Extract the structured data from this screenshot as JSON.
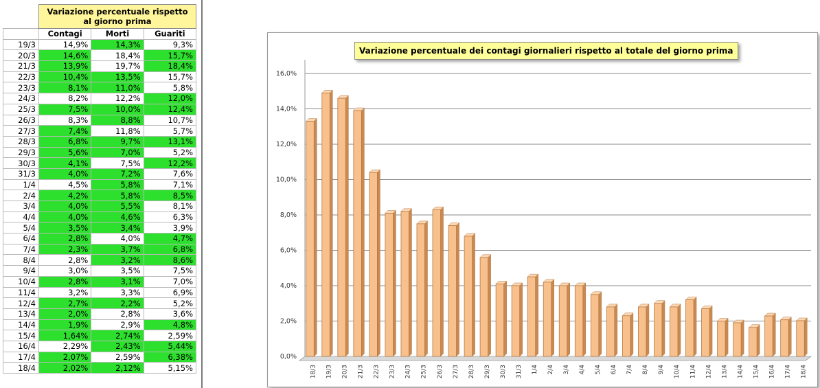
{
  "table": {
    "title": "Variazione percentuale rispetto al giorno prima",
    "headers": [
      "Contagi",
      "Morti",
      "Guariti"
    ],
    "rows": [
      {
        "date": "19/3",
        "contagi": "14,9%",
        "morti": "14,3%",
        "guariti": "9,3%",
        "hl": [
          false,
          true,
          false
        ]
      },
      {
        "date": "20/3",
        "contagi": "14,6%",
        "morti": "18,4%",
        "guariti": "15,7%",
        "hl": [
          true,
          false,
          true
        ]
      },
      {
        "date": "21/3",
        "contagi": "13,9%",
        "morti": "19,7%",
        "guariti": "18,4%",
        "hl": [
          true,
          false,
          true
        ]
      },
      {
        "date": "22/3",
        "contagi": "10,4%",
        "morti": "13,5%",
        "guariti": "15,7%",
        "hl": [
          true,
          true,
          false
        ]
      },
      {
        "date": "23/3",
        "contagi": "8,1%",
        "morti": "11,0%",
        "guariti": "5,8%",
        "hl": [
          true,
          true,
          false
        ]
      },
      {
        "date": "24/3",
        "contagi": "8,2%",
        "morti": "12,2%",
        "guariti": "12,0%",
        "hl": [
          false,
          false,
          true
        ]
      },
      {
        "date": "25/3",
        "contagi": "7,5%",
        "morti": "10,0%",
        "guariti": "12,4%",
        "hl": [
          true,
          true,
          true
        ]
      },
      {
        "date": "26/3",
        "contagi": "8,3%",
        "morti": "8,8%",
        "guariti": "10,7%",
        "hl": [
          false,
          true,
          false
        ]
      },
      {
        "date": "27/3",
        "contagi": "7,4%",
        "morti": "11,8%",
        "guariti": "5,7%",
        "hl": [
          true,
          false,
          false
        ]
      },
      {
        "date": "28/3",
        "contagi": "6,8%",
        "morti": "9,7%",
        "guariti": "13,1%",
        "hl": [
          true,
          true,
          true
        ]
      },
      {
        "date": "29/3",
        "contagi": "5,6%",
        "morti": "7,0%",
        "guariti": "5,2%",
        "hl": [
          true,
          true,
          false
        ]
      },
      {
        "date": "30/3",
        "contagi": "4,1%",
        "morti": "7,5%",
        "guariti": "12,2%",
        "hl": [
          true,
          false,
          true
        ]
      },
      {
        "date": "31/3",
        "contagi": "4,0%",
        "morti": "7,2%",
        "guariti": "7,6%",
        "hl": [
          true,
          true,
          false
        ]
      },
      {
        "date": "1/4",
        "contagi": "4,5%",
        "morti": "5,8%",
        "guariti": "7,1%",
        "hl": [
          false,
          true,
          false
        ]
      },
      {
        "date": "2/4",
        "contagi": "4,2%",
        "morti": "5,8%",
        "guariti": "8,5%",
        "hl": [
          true,
          true,
          true
        ]
      },
      {
        "date": "3/4",
        "contagi": "4,0%",
        "morti": "5,5%",
        "guariti": "8,1%",
        "hl": [
          true,
          true,
          false
        ]
      },
      {
        "date": "4/4",
        "contagi": "4,0%",
        "morti": "4,6%",
        "guariti": "6,3%",
        "hl": [
          true,
          true,
          false
        ]
      },
      {
        "date": "5/4",
        "contagi": "3,5%",
        "morti": "3,4%",
        "guariti": "3,9%",
        "hl": [
          true,
          true,
          false
        ]
      },
      {
        "date": "6/4",
        "contagi": "2,8%",
        "morti": "4,0%",
        "guariti": "4,7%",
        "hl": [
          true,
          false,
          true
        ]
      },
      {
        "date": "7/4",
        "contagi": "2,3%",
        "morti": "3,7%",
        "guariti": "6,8%",
        "hl": [
          true,
          true,
          true
        ]
      },
      {
        "date": "8/4",
        "contagi": "2,8%",
        "morti": "3,2%",
        "guariti": "8,6%",
        "hl": [
          false,
          true,
          true
        ]
      },
      {
        "date": "9/4",
        "contagi": "3,0%",
        "morti": "3,5%",
        "guariti": "7,5%",
        "hl": [
          false,
          false,
          false
        ]
      },
      {
        "date": "10/4",
        "contagi": "2,8%",
        "morti": "3,1%",
        "guariti": "7,0%",
        "hl": [
          true,
          true,
          false
        ]
      },
      {
        "date": "11/4",
        "contagi": "3,2%",
        "morti": "3,3%",
        "guariti": "6,9%",
        "hl": [
          false,
          false,
          false
        ]
      },
      {
        "date": "12/4",
        "contagi": "2,7%",
        "morti": "2,2%",
        "guariti": "5,2%",
        "hl": [
          true,
          true,
          false
        ]
      },
      {
        "date": "13/4",
        "contagi": "2,0%",
        "morti": "2,8%",
        "guariti": "3,6%",
        "hl": [
          true,
          false,
          false
        ]
      },
      {
        "date": "14/4",
        "contagi": "1,9%",
        "morti": "2,9%",
        "guariti": "4,8%",
        "hl": [
          true,
          false,
          true
        ]
      },
      {
        "date": "15/4",
        "contagi": "1,64%",
        "morti": "2,74%",
        "guariti": "2,59%",
        "hl": [
          true,
          true,
          false
        ]
      },
      {
        "date": "16/4",
        "contagi": "2,29%",
        "morti": "2,43%",
        "guariti": "5,44%",
        "hl": [
          false,
          true,
          true
        ]
      },
      {
        "date": "17/4",
        "contagi": "2,07%",
        "morti": "2,59%",
        "guariti": "6,38%",
        "hl": [
          true,
          false,
          true
        ]
      },
      {
        "date": "18/4",
        "contagi": "2,02%",
        "morti": "2,12%",
        "guariti": "5,15%",
        "hl": [
          true,
          true,
          false
        ]
      }
    ]
  },
  "colors": {
    "highlight": "#2ee02e",
    "bar_fill": "#f8c08c",
    "bar_stroke": "#b57a45",
    "title_bg": "#ffff99",
    "table_title_bg": "#fff59a"
  },
  "chart_data": {
    "type": "bar",
    "title": "Variazione percentuale dei contagi giornalieri rispetto al totale del giorno prima",
    "xlabel": "",
    "ylabel": "",
    "ylim": [
      0,
      16
    ],
    "yticks": [
      "0,0%",
      "2,0%",
      "4,0%",
      "6,0%",
      "8,0%",
      "10,0%",
      "12,0%",
      "14,0%",
      "16,0%"
    ],
    "grid": true,
    "legend": "none",
    "categories": [
      "18/3",
      "19/3",
      "20/3",
      "21/3",
      "22/3",
      "23/3",
      "24/3",
      "25/3",
      "26/3",
      "27/3",
      "28/3",
      "29/3",
      "30/3",
      "31/3",
      "1/4",
      "2/4",
      "3/4",
      "4/4",
      "5/4",
      "6/4",
      "7/4",
      "8/4",
      "9/4",
      "10/4",
      "11/4",
      "12/4",
      "13/4",
      "14/4",
      "15/4",
      "16/4",
      "17/4",
      "18/4"
    ],
    "values": [
      13.3,
      14.9,
      14.6,
      13.9,
      10.4,
      8.1,
      8.2,
      7.5,
      8.3,
      7.4,
      6.8,
      5.6,
      4.1,
      4.0,
      4.5,
      4.2,
      4.0,
      4.0,
      3.5,
      2.8,
      2.3,
      2.8,
      3.0,
      2.8,
      3.2,
      2.7,
      2.0,
      1.9,
      1.64,
      2.29,
      2.07,
      2.02
    ]
  }
}
